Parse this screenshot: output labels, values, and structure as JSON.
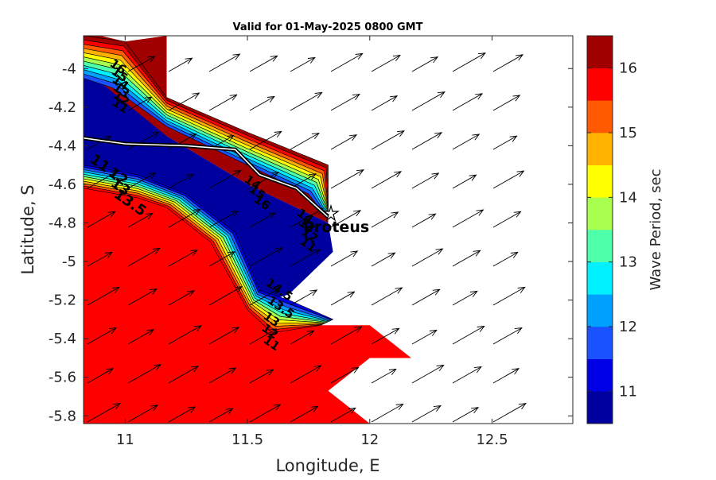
{
  "title": "Valid for 01-May-2025 0800 GMT",
  "xlabel": "Longitude, E",
  "ylabel": "Latitude, S",
  "colorbar_label": "Wave Period, sec",
  "x_ticks": [
    "11",
    "11.5",
    "12",
    "12.5"
  ],
  "y_ticks": [
    "-4",
    "-4.2",
    "-4.4",
    "-4.6",
    "-4.8",
    "-5",
    "-5.2",
    "-5.4",
    "-5.6",
    "-5.8"
  ],
  "colorbar_ticks": [
    "11",
    "12",
    "13",
    "14",
    "15",
    "16"
  ],
  "station": {
    "name": "Proteus",
    "lon": 11.83,
    "lat": -4.77,
    "marker": "star-icon"
  },
  "contour_labels": [
    "16",
    "15",
    "14",
    "13",
    "12",
    "11",
    "11",
    "12",
    "13",
    "13.5",
    "14",
    "15",
    "16",
    "14",
    "13",
    "12",
    "11",
    "14.5",
    "13.5",
    "13",
    "12",
    "11"
  ],
  "chart_data": {
    "type": "heatmap",
    "title": "Valid for 01-May-2025 0800 GMT",
    "xlabel": "Longitude, E",
    "ylabel": "Latitude, S",
    "xlim": [
      10.83,
      12.83
    ],
    "ylim": [
      -5.84,
      -3.83
    ],
    "clim": [
      10.5,
      16.5
    ],
    "colorbar": {
      "label": "Wave Period, sec",
      "levels": [
        10.5,
        11,
        11.5,
        12,
        12.5,
        13,
        13.5,
        14,
        14.5,
        15,
        15.5,
        16,
        16.5
      ],
      "colors": [
        "#00009f",
        "#0000e6",
        "#1a52ff",
        "#00a0ff",
        "#00f0ff",
        "#4dffa8",
        "#a8ff4d",
        "#ffff00",
        "#ffb300",
        "#ff5a00",
        "#ff0000",
        "#a00000"
      ]
    },
    "regions": [
      {
        "name": "north-high",
        "value": 16.3,
        "polygon": [
          [
            10.83,
            -3.83
          ],
          [
            10.9,
            -3.83
          ],
          [
            11.0,
            -3.86
          ],
          [
            11.17,
            -3.83
          ],
          [
            11.17,
            -4.15
          ],
          [
            11.5,
            -4.33
          ],
          [
            11.83,
            -4.5
          ],
          [
            11.83,
            -4.8
          ],
          [
            11.5,
            -4.6
          ],
          [
            11.17,
            -4.35
          ],
          [
            10.83,
            -4.1
          ]
        ]
      },
      {
        "name": "central-low",
        "value": 10.8,
        "polygon": [
          [
            10.83,
            -4.0
          ],
          [
            11.17,
            -4.35
          ],
          [
            11.5,
            -4.6
          ],
          [
            11.83,
            -4.8
          ],
          [
            11.85,
            -4.95
          ],
          [
            11.67,
            -5.17
          ],
          [
            11.55,
            -5.22
          ],
          [
            11.33,
            -4.83
          ],
          [
            11.17,
            -4.65
          ],
          [
            10.83,
            -4.55
          ]
        ]
      },
      {
        "name": "south-high",
        "value": 15.8,
        "polygon": [
          [
            10.83,
            -4.55
          ],
          [
            11.17,
            -4.65
          ],
          [
            11.33,
            -4.83
          ],
          [
            11.5,
            -5.17
          ],
          [
            11.67,
            -5.33
          ],
          [
            11.83,
            -5.33
          ],
          [
            12.0,
            -5.33
          ],
          [
            12.17,
            -5.5
          ],
          [
            12.0,
            -5.5
          ],
          [
            11.83,
            -5.67
          ],
          [
            12.0,
            -5.84
          ],
          [
            10.83,
            -5.84
          ]
        ]
      }
    ],
    "coastline": [
      [
        10.83,
        -4.36
      ],
      [
        11.0,
        -4.39
      ],
      [
        11.25,
        -4.4
      ],
      [
        11.45,
        -4.42
      ],
      [
        11.55,
        -4.55
      ],
      [
        11.7,
        -4.62
      ],
      [
        11.83,
        -4.77
      ]
    ],
    "wave_direction_deg_from_east": 60
  }
}
